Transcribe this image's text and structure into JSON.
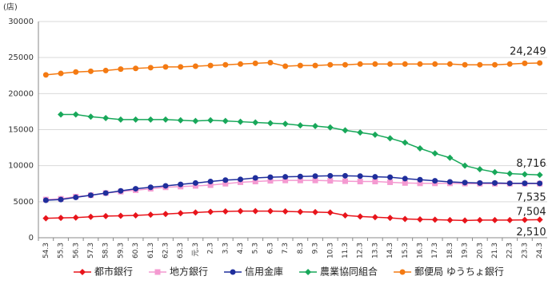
{
  "chart_data": {
    "type": "line",
    "y_label": "(店)",
    "categories": [
      "54.3",
      "55.3",
      "56.3",
      "57.3",
      "58.3",
      "59.3",
      "60.3",
      "61.3",
      "62.3",
      "63.3",
      "元.3",
      "2.3",
      "3.3",
      "4.3",
      "5.3",
      "6.3",
      "7.3",
      "8.3",
      "9.3",
      "10.3",
      "11.3",
      "12.3",
      "13.3",
      "14.3",
      "15.3",
      "16.3",
      "17.3",
      "18.3",
      "19.3",
      "20.3",
      "21.3",
      "22.3",
      "23.3",
      "24.3"
    ],
    "ylim": [
      0,
      30000
    ],
    "yticks": [
      0,
      5000,
      10000,
      15000,
      20000,
      25000,
      30000
    ],
    "grid": true,
    "series": [
      {
        "name": "都市銀行",
        "color": "#e8141b",
        "marker": "diamond",
        "values": [
          2700,
          2750,
          2800,
          2900,
          3000,
          3050,
          3100,
          3200,
          3300,
          3400,
          3500,
          3600,
          3650,
          3700,
          3700,
          3700,
          3650,
          3600,
          3550,
          3500,
          3100,
          2950,
          2850,
          2750,
          2600,
          2550,
          2500,
          2450,
          2400,
          2450,
          2450,
          2450,
          2480,
          2510
        ],
        "value_labels": [
          null,
          null,
          null,
          null,
          null,
          null,
          null,
          null,
          null,
          null,
          null,
          null,
          null,
          null,
          null,
          null,
          null,
          null,
          null,
          null,
          null,
          null,
          null,
          null,
          null,
          null,
          null,
          null,
          null,
          null,
          null,
          null,
          null,
          "2,510"
        ]
      },
      {
        "name": "地方銀行",
        "color": "#f49ad1",
        "marker": "square",
        "values": [
          5300,
          5400,
          5700,
          5900,
          6200,
          6400,
          6600,
          6800,
          7000,
          7100,
          7200,
          7300,
          7500,
          7700,
          7800,
          7900,
          7950,
          7950,
          7950,
          7900,
          7850,
          7800,
          7800,
          7700,
          7600,
          7550,
          7550,
          7550,
          7520,
          7500,
          7500,
          7500,
          7500,
          7504
        ],
        "value_labels": [
          null,
          null,
          null,
          null,
          null,
          null,
          null,
          null,
          null,
          null,
          null,
          null,
          null,
          null,
          null,
          null,
          null,
          null,
          null,
          null,
          null,
          null,
          null,
          null,
          null,
          null,
          null,
          null,
          null,
          null,
          null,
          null,
          null,
          "7,504"
        ]
      },
      {
        "name": "信用金庫",
        "color": "#1f2e9c",
        "marker": "circle",
        "values": [
          5200,
          5300,
          5600,
          5900,
          6200,
          6500,
          6800,
          7000,
          7200,
          7400,
          7600,
          7800,
          8000,
          8100,
          8300,
          8400,
          8450,
          8500,
          8550,
          8600,
          8600,
          8550,
          8450,
          8400,
          8200,
          8050,
          7900,
          7750,
          7650,
          7600,
          7600,
          7550,
          7550,
          7535
        ],
        "value_labels": [
          null,
          null,
          null,
          null,
          null,
          null,
          null,
          null,
          null,
          null,
          null,
          null,
          null,
          null,
          null,
          null,
          null,
          null,
          null,
          null,
          null,
          null,
          null,
          null,
          null,
          null,
          null,
          null,
          null,
          null,
          null,
          null,
          null,
          "7,535"
        ]
      },
      {
        "name": "農業協同組合",
        "color": "#18a85a",
        "marker": "diamond",
        "values": [
          null,
          17100,
          17100,
          16800,
          16600,
          16400,
          16400,
          16400,
          16400,
          16300,
          16200,
          16300,
          16200,
          16100,
          16000,
          15900,
          15800,
          15600,
          15500,
          15300,
          14900,
          14600,
          14300,
          13800,
          13200,
          12400,
          11700,
          11100,
          10000,
          9500,
          9100,
          8900,
          8800,
          8716
        ],
        "value_labels": [
          null,
          null,
          null,
          null,
          null,
          null,
          null,
          null,
          null,
          null,
          null,
          null,
          null,
          null,
          null,
          null,
          null,
          null,
          null,
          null,
          null,
          null,
          null,
          null,
          null,
          null,
          null,
          null,
          null,
          null,
          null,
          null,
          null,
          "8,716"
        ]
      },
      {
        "name": "郵便局 ゆうちょ銀行",
        "color": "#f47a12",
        "marker": "circle",
        "values": [
          22600,
          22800,
          23000,
          23100,
          23200,
          23400,
          23500,
          23600,
          23700,
          23700,
          23800,
          23900,
          24000,
          24100,
          24200,
          24300,
          23800,
          23900,
          23900,
          24000,
          24000,
          24100,
          24100,
          24100,
          24100,
          24100,
          24100,
          24100,
          24000,
          24000,
          24000,
          24100,
          24200,
          24249
        ],
        "value_labels": [
          null,
          null,
          null,
          null,
          null,
          null,
          null,
          null,
          null,
          null,
          null,
          null,
          null,
          null,
          null,
          null,
          null,
          null,
          null,
          null,
          null,
          null,
          null,
          null,
          null,
          null,
          null,
          null,
          null,
          null,
          null,
          null,
          null,
          "24,249"
        ]
      }
    ]
  }
}
